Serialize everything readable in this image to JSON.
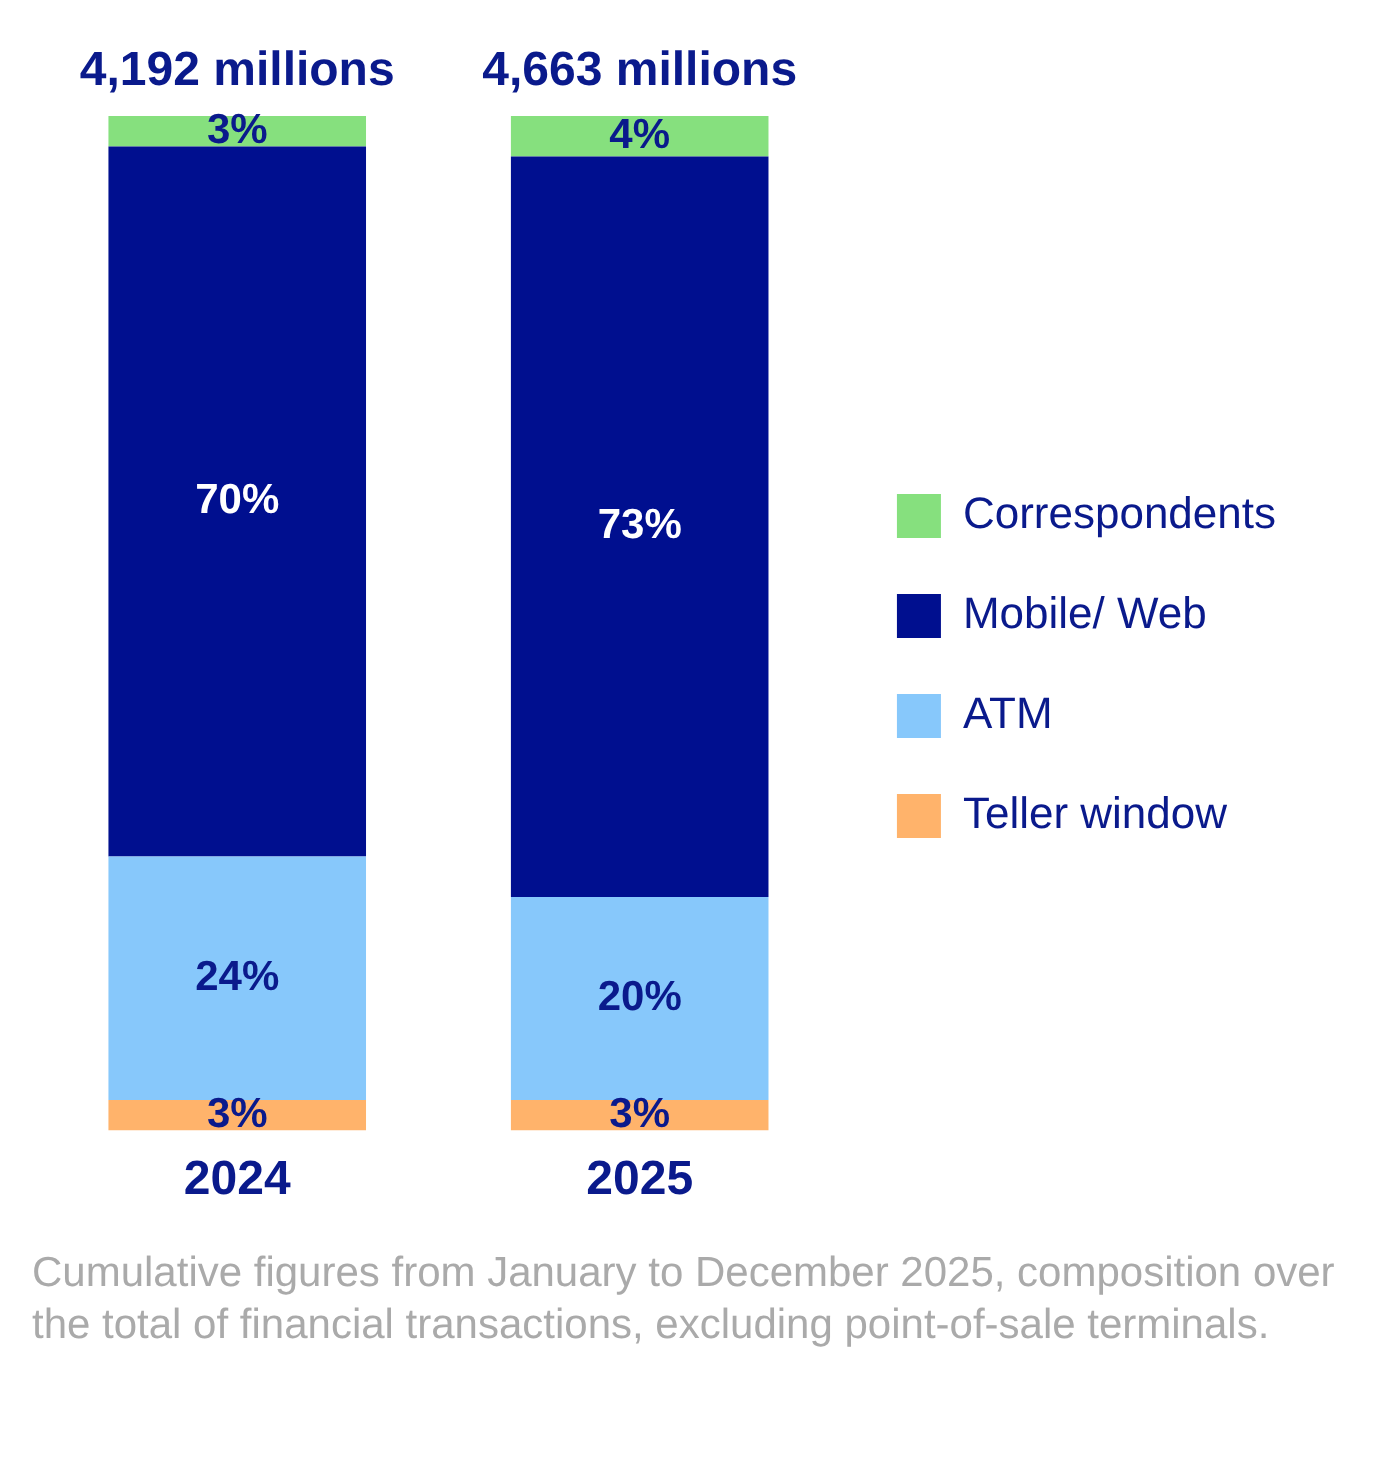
{
  "chart_data": {
    "type": "bar",
    "stacked": true,
    "categories": [
      "2024",
      "2025"
    ],
    "series": [
      {
        "name": "Teller window",
        "color": "#ffb36b",
        "values": [
          3,
          3
        ],
        "value_labels": [
          "3%",
          "3%"
        ]
      },
      {
        "name": "ATM",
        "color": "#87c8fb",
        "values": [
          24,
          20
        ],
        "value_labels": [
          "24%",
          "20%"
        ]
      },
      {
        "name": "Mobile/ Web",
        "color": "#000f8f",
        "values": [
          70,
          73
        ],
        "value_labels": [
          "70%",
          "73%"
        ]
      },
      {
        "name": "Correspondents",
        "color": "#86e07e",
        "values": [
          3,
          4
        ],
        "value_labels": [
          "3%",
          "4%"
        ]
      }
    ],
    "legend": "right",
    "grid": false,
    "tick_labels": "x",
    "annotations": [
      {
        "text": "4,192 millions",
        "x": "2024",
        "y": 100
      },
      {
        "text": "4,663 millions",
        "x": "2025",
        "y": 100
      },
      "Cumulative figures from January to December 2025, composition over the total of financial transactions, excluding point-of-sale terminals."
    ]
  }
}
